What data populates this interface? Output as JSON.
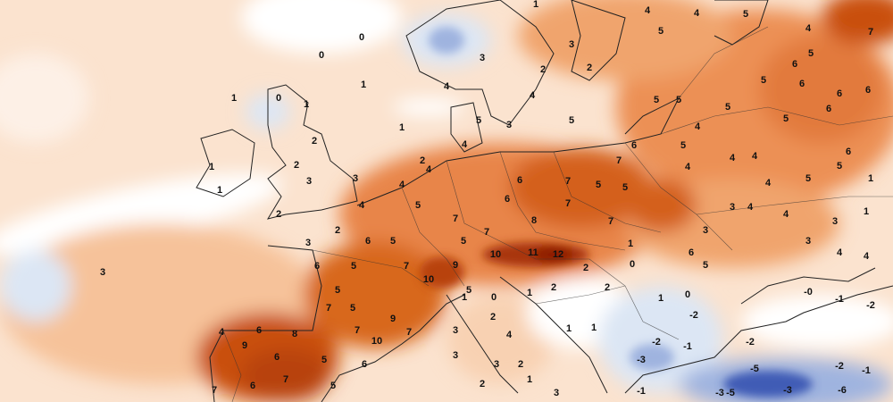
{
  "map": {
    "type": "temperature anomaly map",
    "region": "Europe",
    "colors": {
      "background": "#fbe3cf",
      "neutral": "#ffffff",
      "warm_light": "#f6c29a",
      "warm_mid": "#ec9055",
      "warm_strong": "#d4611f",
      "warm_very_strong": "#b8420e",
      "warm_extreme": "#8e1e06",
      "cool_light": "#dce6f4",
      "cool_mid": "#9fb3df",
      "cool_strong": "#3f5bb5",
      "borders": "#222222"
    },
    "labels": [
      "0",
      "1",
      "1",
      "3",
      "0",
      "1",
      "0",
      "1",
      "1",
      "1",
      "2",
      "2",
      "3",
      "3",
      "2",
      "3",
      "2",
      "4",
      "6",
      "5",
      "6",
      "5",
      "7",
      "5",
      "5",
      "7",
      "9",
      "7",
      "10",
      "7",
      "4",
      "6",
      "8",
      "9",
      "6",
      "7",
      "5",
      "6",
      "7",
      "6",
      "5",
      "4",
      "5",
      "7",
      "5",
      "7",
      "6",
      "6",
      "8",
      "7",
      "7",
      "5",
      "5",
      "7",
      "6",
      "7",
      "10",
      "11",
      "12",
      "9",
      "10",
      "5",
      "1",
      "0",
      "1",
      "2",
      "2",
      "1",
      "0",
      "1",
      "0",
      "5",
      "6",
      "3",
      "3",
      "4",
      "4",
      "5",
      "5",
      "6",
      "5",
      "6",
      "5",
      "5",
      "4",
      "5",
      "4",
      "4",
      "5",
      "7",
      "6",
      "6",
      "6",
      "6",
      "5",
      "5",
      "5",
      "4",
      "5",
      "4",
      "4",
      "4",
      "4",
      "3",
      "3",
      "4",
      "4",
      "1",
      "1",
      "-0",
      "-1",
      "-2",
      "-2",
      "-2",
      "-1",
      "-3",
      "-2",
      "-5",
      "-3",
      "-5",
      "-3",
      "-6",
      "-2",
      "-1",
      "3",
      "4",
      "2",
      "3",
      "2",
      "1",
      "1",
      "1",
      "2",
      "-1",
      "3",
      "2",
      "3",
      "1",
      "3",
      "2",
      "4",
      "2",
      "4",
      "3",
      "5",
      "4",
      "3",
      "5",
      "2",
      "4"
    ]
  }
}
